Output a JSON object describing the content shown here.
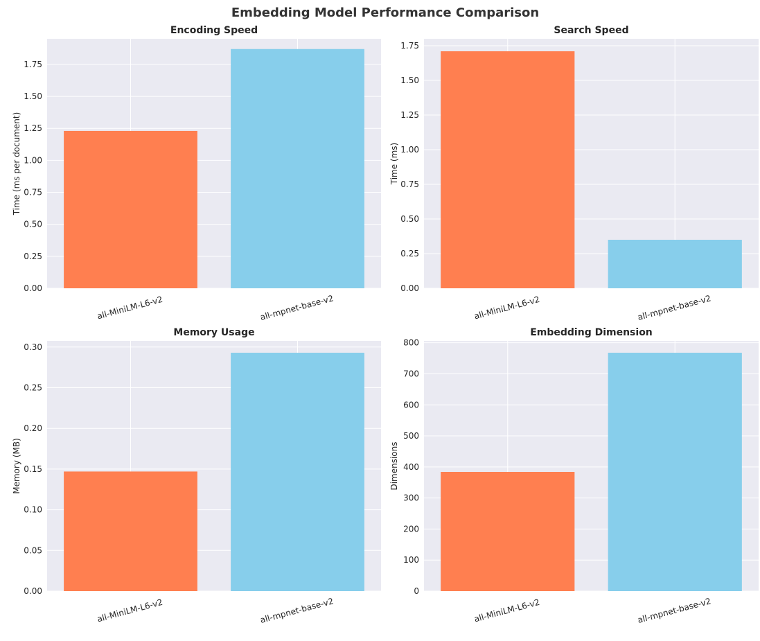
{
  "figure": {
    "title": "Embedding Model Performance Comparison"
  },
  "chart_data": [
    {
      "type": "bar",
      "title": "Encoding Speed",
      "xlabel": "",
      "ylabel": "Time (ms per document)",
      "categories": [
        "all-MiniLM-L6-v2",
        "all-mpnet-base-v2"
      ],
      "values": [
        1.23,
        1.87
      ],
      "colors": [
        "#ff7f50",
        "#87ceeb"
      ],
      "ylim": [
        0,
        1.95
      ],
      "yticks": [
        0,
        0.25,
        0.5,
        0.75,
        1.0,
        1.25,
        1.5,
        1.75
      ],
      "ytick_labels": [
        "0.00",
        "0.25",
        "0.50",
        "0.75",
        "1.00",
        "1.25",
        "1.50",
        "1.75"
      ],
      "grid": true
    },
    {
      "type": "bar",
      "title": "Search Speed",
      "xlabel": "",
      "ylabel": "Time (ms)",
      "categories": [
        "all-MiniLM-L6-v2",
        "all-mpnet-base-v2"
      ],
      "values": [
        1.71,
        0.35
      ],
      "colors": [
        "#ff7f50",
        "#87ceeb"
      ],
      "ylim": [
        0,
        1.8
      ],
      "yticks": [
        0,
        0.25,
        0.5,
        0.75,
        1.0,
        1.25,
        1.5,
        1.75
      ],
      "ytick_labels": [
        "0.00",
        "0.25",
        "0.50",
        "0.75",
        "1.00",
        "1.25",
        "1.50",
        "1.75"
      ],
      "grid": true
    },
    {
      "type": "bar",
      "title": "Memory Usage",
      "xlabel": "",
      "ylabel": "Memory (MB)",
      "categories": [
        "all-MiniLM-L6-v2",
        "all-mpnet-base-v2"
      ],
      "values": [
        0.147,
        0.293
      ],
      "colors": [
        "#ff7f50",
        "#87ceeb"
      ],
      "ylim": [
        0,
        0.3075
      ],
      "yticks": [
        0,
        0.05,
        0.1,
        0.15,
        0.2,
        0.25,
        0.3
      ],
      "ytick_labels": [
        "0.00",
        "0.05",
        "0.10",
        "0.15",
        "0.20",
        "0.25",
        "0.30"
      ],
      "grid": true
    },
    {
      "type": "bar",
      "title": "Embedding Dimension",
      "xlabel": "",
      "ylabel": "Dimensions",
      "categories": [
        "all-MiniLM-L6-v2",
        "all-mpnet-base-v2"
      ],
      "values": [
        384,
        768
      ],
      "colors": [
        "#ff7f50",
        "#87ceeb"
      ],
      "ylim": [
        0,
        806
      ],
      "yticks": [
        0,
        100,
        200,
        300,
        400,
        500,
        600,
        700,
        800
      ],
      "ytick_labels": [
        "0",
        "100",
        "200",
        "300",
        "400",
        "500",
        "600",
        "700",
        "800"
      ],
      "grid": true
    }
  ]
}
